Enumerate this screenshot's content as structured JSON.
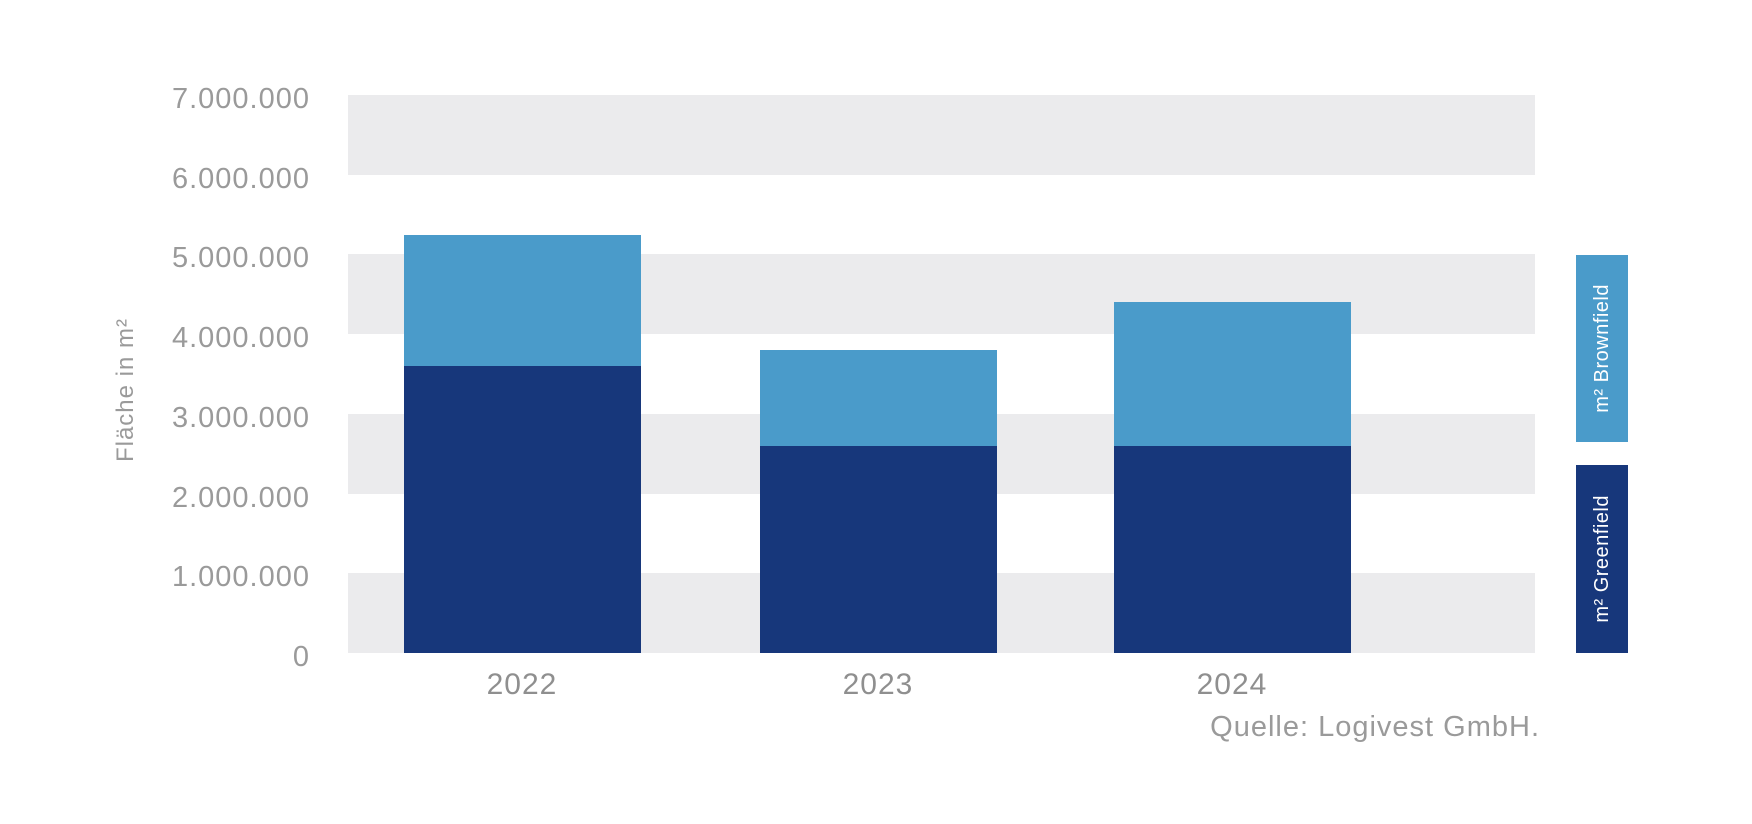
{
  "chart_data": {
    "type": "bar",
    "stacked": true,
    "title": "",
    "ylabel": "Fläche in m²",
    "xlabel": "",
    "categories": [
      "2022",
      "2023",
      "2024"
    ],
    "series": [
      {
        "name": "m² Greenfield",
        "color": "#17377B",
        "values": [
          3600000,
          2600000,
          2600000
        ]
      },
      {
        "name": "m² Brownfield",
        "color": "#4A9BCA",
        "values": [
          1650000,
          1200000,
          1800000
        ]
      }
    ],
    "totals": [
      5250000,
      3800000,
      4400000
    ],
    "ylim": [
      0,
      7000000
    ],
    "y_ticks": [
      "7.000.000",
      "6.000.000",
      "5.000.000",
      "4.000.000",
      "3.000.000",
      "2.000.000",
      "1.000.000",
      "0"
    ],
    "grid": "horizontal-bands",
    "band_colors": [
      "#EBEBED",
      "#FFFFFF"
    ],
    "legend_position": "right",
    "source": "Quelle: Logivest GmbH."
  }
}
